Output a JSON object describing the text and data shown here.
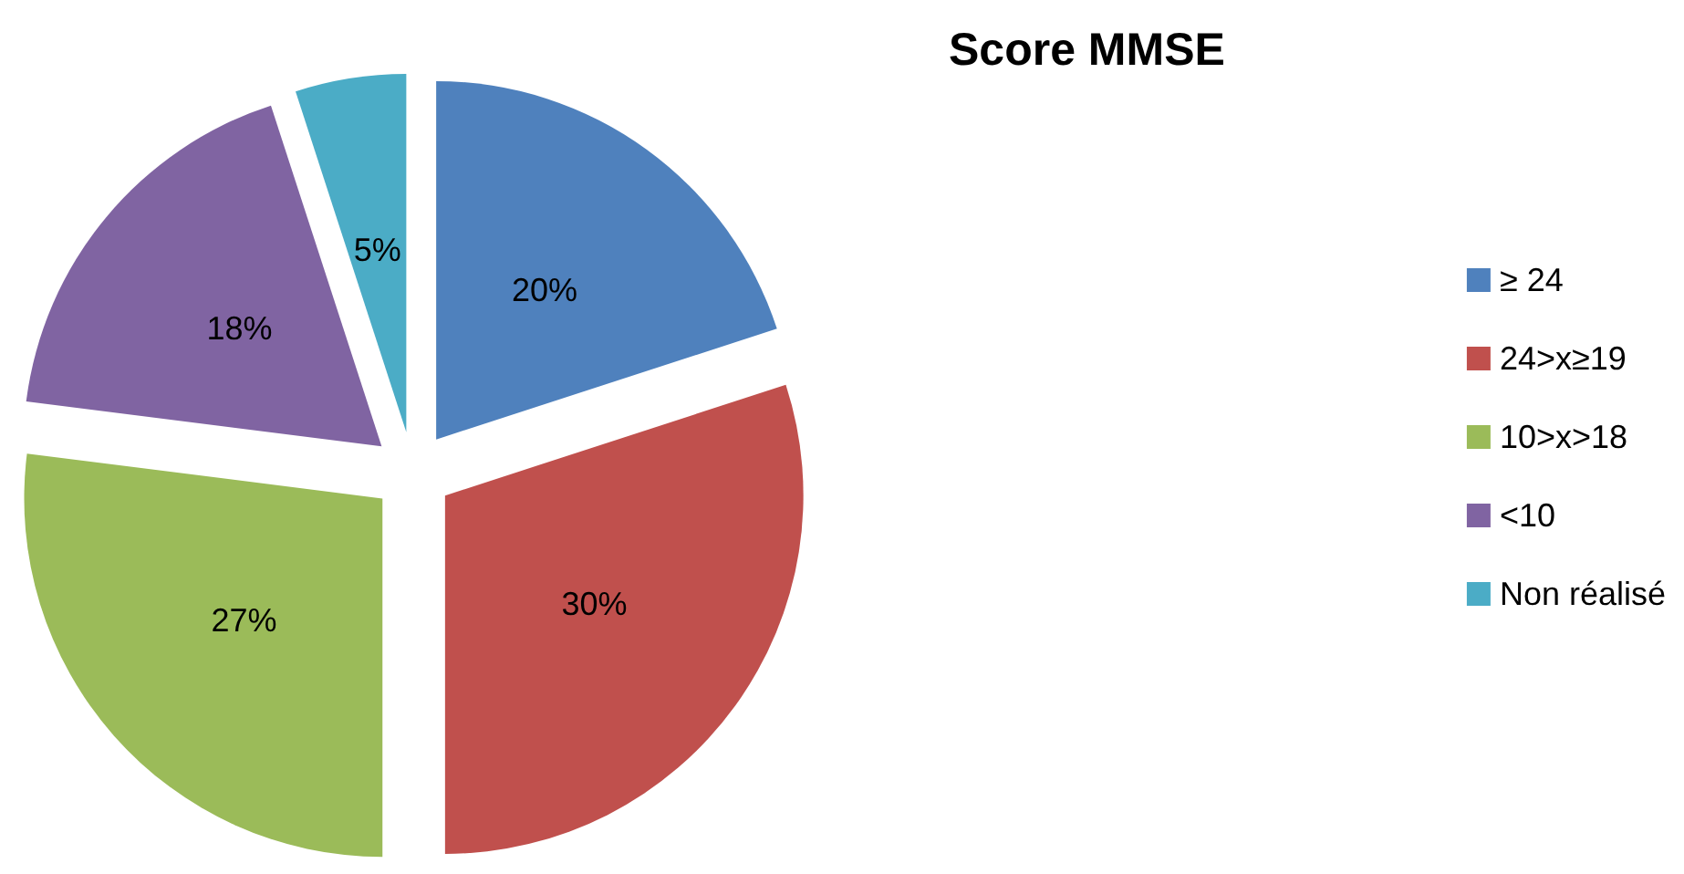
{
  "chart_data": {
    "type": "pie",
    "title": "Score MMSE",
    "categories": [
      "≥ 24",
      "24>x≥19",
      "10>x>18",
      "<10",
      "Non réalisé"
    ],
    "values": [
      20,
      30,
      27,
      18,
      5
    ],
    "value_labels": [
      "20%",
      "30%",
      "27%",
      "18%",
      "5%"
    ],
    "colors": [
      "#4f81bd",
      "#c0504d",
      "#9bbb59",
      "#8064a2",
      "#4bacc6"
    ],
    "legend": "right"
  }
}
